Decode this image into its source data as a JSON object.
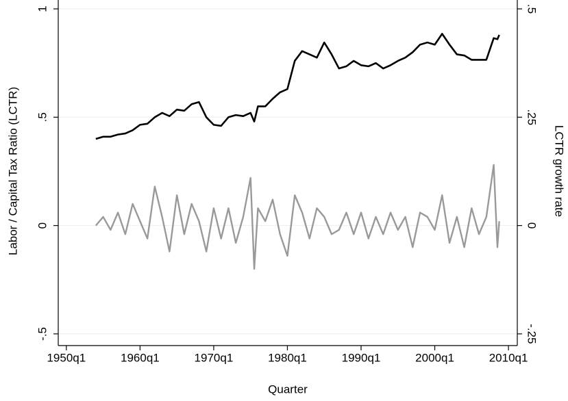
{
  "chart_data": {
    "type": "line",
    "x_label": "Quarter",
    "y_label": "Labor / Capital Tax Ratio (LCTR)",
    "y2_label": "LCTR growth rate",
    "x": [
      1954,
      1955,
      1956,
      1957,
      1958,
      1959,
      1960,
      1961,
      1962,
      1963,
      1964,
      1965,
      1966,
      1967,
      1968,
      1969,
      1970,
      1971,
      1972,
      1973,
      1974,
      1975,
      1975.5,
      1976,
      1977,
      1978,
      1979,
      1980,
      1981,
      1982,
      1983,
      1984,
      1985,
      1986,
      1987,
      1988,
      1989,
      1990,
      1991,
      1992,
      1993,
      1994,
      1995,
      1996,
      1997,
      1998,
      1999,
      2000,
      2001,
      2002,
      2003,
      2004,
      2005,
      2006,
      2007,
      2008,
      2008.5,
      2008.75
    ],
    "series": [
      {
        "color": "#000000",
        "axis": "y",
        "values": [
          0.4,
          0.41,
          0.41,
          0.42,
          0.425,
          0.44,
          0.465,
          0.47,
          0.5,
          0.52,
          0.505,
          0.535,
          0.53,
          0.56,
          0.57,
          0.5,
          0.465,
          0.46,
          0.5,
          0.51,
          0.505,
          0.52,
          0.48,
          0.55,
          0.55,
          0.585,
          0.615,
          0.63,
          0.76,
          0.805,
          0.79,
          0.775,
          0.845,
          0.79,
          0.725,
          0.735,
          0.76,
          0.74,
          0.735,
          0.75,
          0.725,
          0.74,
          0.76,
          0.775,
          0.8,
          0.835,
          0.845,
          0.835,
          0.885,
          0.835,
          0.79,
          0.785,
          0.765,
          0.765,
          0.765,
          0.865,
          0.86,
          0.88
        ]
      },
      {
        "color": "#999999",
        "axis": "y2",
        "values": [
          0,
          0.02,
          -0.01,
          0.03,
          -0.02,
          0.05,
          0.01,
          -0.03,
          0.09,
          0.02,
          -0.06,
          0.07,
          -0.02,
          0.05,
          0.01,
          -0.06,
          0.04,
          -0.03,
          0.04,
          -0.04,
          0.02,
          0.11,
          -0.1,
          0.04,
          0.01,
          0.06,
          -0.02,
          -0.07,
          0.07,
          0.03,
          -0.03,
          0.04,
          0.02,
          -0.02,
          -0.01,
          0.03,
          -0.02,
          0.03,
          -0.03,
          0.02,
          -0.02,
          0.03,
          -0.01,
          0.02,
          -0.05,
          0.03,
          0.02,
          -0.01,
          0.07,
          -0.04,
          0.02,
          -0.05,
          0.04,
          -0.02,
          0.02,
          0.14,
          -0.05,
          0.01
        ]
      }
    ],
    "xlim": [
      1948.9,
      2011.2
    ],
    "xticks": [
      {
        "value": 1950,
        "label": "1950q1"
      },
      {
        "value": 1960,
        "label": "1960q1"
      },
      {
        "value": 1970,
        "label": "1970q1"
      },
      {
        "value": 1980,
        "label": "1980q1"
      },
      {
        "value": 1990,
        "label": "1990q1"
      },
      {
        "value": 2000,
        "label": "2000q1"
      },
      {
        "value": 2010,
        "label": "2010q1"
      }
    ],
    "ylim": [
      -0.554,
      1.041
    ],
    "yticks": [
      {
        "value": -0.5,
        "label": "-.5"
      },
      0,
      {
        "value": 0.5,
        "label": ".5"
      },
      1
    ],
    "y2lim": [
      -0.277,
      0.5205
    ],
    "y2ticks": [
      {
        "value": -0.25,
        "label": "-.25"
      },
      0,
      {
        "value": 0.25,
        "label": ".25"
      },
      {
        "value": 0.5,
        "label": ".5"
      }
    ],
    "grid": true
  }
}
